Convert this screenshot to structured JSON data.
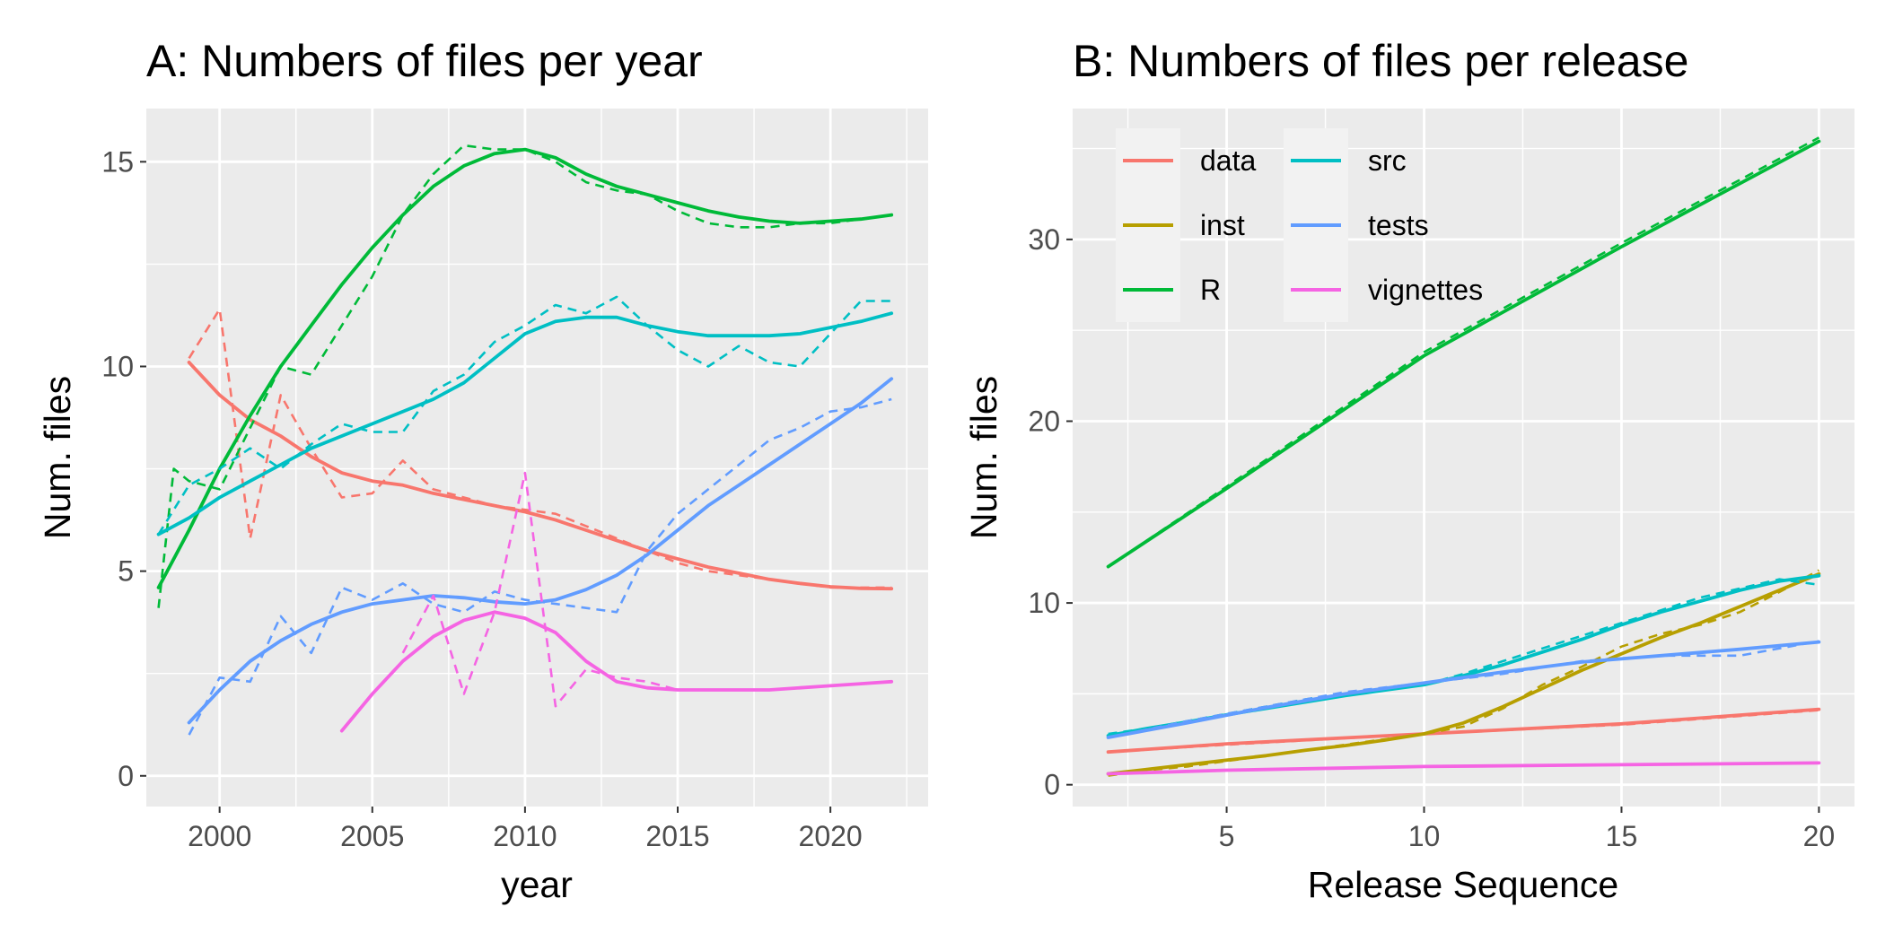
{
  "chart_data": [
    {
      "type": "line",
      "title": "A: Numbers of files per year",
      "xlabel": "year",
      "ylabel": "Num. files",
      "xlim": [
        1997.6,
        2023.2
      ],
      "ylim": [
        -0.75,
        16.3
      ],
      "xticks": [
        2000,
        2005,
        2010,
        2015,
        2020
      ],
      "yticks": [
        0,
        5,
        10,
        15
      ],
      "grid": true,
      "series": [
        {
          "name": "data",
          "color": "#F8766D",
          "raw": {
            "x": [
              1999,
              2000,
              2001,
              2002,
              2003,
              2004,
              2005,
              2006,
              2007,
              2008,
              2009,
              2010,
              2011,
              2012,
              2013,
              2014,
              2015,
              2016,
              2017,
              2018,
              2019,
              2020,
              2021,
              2022
            ],
            "y": [
              10.2,
              11.4,
              5.8,
              9.3,
              8.0,
              6.8,
              6.9,
              7.7,
              7.0,
              6.8,
              6.6,
              6.5,
              6.4,
              6.1,
              5.8,
              5.5,
              5.2,
              5.0,
              4.9,
              4.8,
              4.7,
              4.6,
              4.6,
              4.6
            ]
          },
          "smooth": {
            "x": [
              1999,
              2000,
              2001,
              2002,
              2003,
              2004,
              2005,
              2006,
              2007,
              2008,
              2009,
              2010,
              2011,
              2012,
              2013,
              2014,
              2015,
              2016,
              2017,
              2018,
              2019,
              2020,
              2021,
              2022
            ],
            "y": [
              10.1,
              9.3,
              8.7,
              8.3,
              7.8,
              7.4,
              7.2,
              7.1,
              6.9,
              6.75,
              6.6,
              6.45,
              6.25,
              6.0,
              5.75,
              5.5,
              5.3,
              5.1,
              4.95,
              4.8,
              4.7,
              4.62,
              4.58,
              4.57
            ]
          }
        },
        {
          "name": "R",
          "color": "#00BA38",
          "raw": {
            "x": [
              1998,
              1998.5,
              1999,
              2000,
              2001,
              2002,
              2003,
              2004,
              2005,
              2006,
              2007,
              2008,
              2009,
              2010,
              2011,
              2012,
              2013,
              2014,
              2015,
              2016,
              2017,
              2018,
              2019,
              2020,
              2021,
              2022
            ],
            "y": [
              4.1,
              7.5,
              7.2,
              7.0,
              8.5,
              10.0,
              9.8,
              11.0,
              12.2,
              13.7,
              14.7,
              15.4,
              15.3,
              15.3,
              15.0,
              14.5,
              14.3,
              14.2,
              13.8,
              13.5,
              13.4,
              13.4,
              13.5,
              13.5,
              13.6,
              13.7
            ]
          },
          "smooth": {
            "x": [
              1998,
              1999,
              2000,
              2001,
              2002,
              2003,
              2004,
              2005,
              2006,
              2007,
              2008,
              2009,
              2010,
              2011,
              2012,
              2013,
              2014,
              2015,
              2016,
              2017,
              2018,
              2019,
              2020,
              2021,
              2022
            ],
            "y": [
              4.6,
              6.0,
              7.5,
              8.8,
              10.0,
              11.0,
              12.0,
              12.9,
              13.7,
              14.4,
              14.9,
              15.2,
              15.3,
              15.1,
              14.7,
              14.4,
              14.2,
              14.0,
              13.8,
              13.65,
              13.55,
              13.5,
              13.55,
              13.6,
              13.7
            ]
          }
        },
        {
          "name": "src",
          "color": "#00BFC4",
          "raw": {
            "x": [
              1998,
              1999,
              2000,
              2001,
              2002,
              2003,
              2004,
              2005,
              2006,
              2007,
              2008,
              2009,
              2010,
              2011,
              2012,
              2013,
              2014,
              2015,
              2016,
              2017,
              2018,
              2019,
              2020,
              2021,
              2022
            ],
            "y": [
              5.9,
              7.1,
              7.5,
              8.0,
              7.5,
              8.1,
              8.6,
              8.4,
              8.4,
              9.4,
              9.8,
              10.6,
              11.0,
              11.5,
              11.3,
              11.7,
              11.0,
              10.4,
              10.0,
              10.5,
              10.1,
              10.0,
              10.8,
              11.6,
              11.6
            ]
          },
          "smooth": {
            "x": [
              1998,
              1999,
              2000,
              2001,
              2002,
              2003,
              2004,
              2005,
              2006,
              2007,
              2008,
              2009,
              2010,
              2011,
              2012,
              2013,
              2014,
              2015,
              2016,
              2017,
              2018,
              2019,
              2020,
              2021,
              2022
            ],
            "y": [
              5.9,
              6.3,
              6.8,
              7.2,
              7.6,
              8.0,
              8.3,
              8.6,
              8.9,
              9.2,
              9.6,
              10.2,
              10.8,
              11.1,
              11.2,
              11.2,
              11.0,
              10.85,
              10.75,
              10.75,
              10.75,
              10.8,
              10.95,
              11.1,
              11.3
            ]
          }
        },
        {
          "name": "tests",
          "color": "#619CFF",
          "raw": {
            "x": [
              1999,
              2000,
              2001,
              2002,
              2003,
              2004,
              2005,
              2006,
              2007,
              2008,
              2009,
              2010,
              2011,
              2012,
              2013,
              2014,
              2015,
              2016,
              2017,
              2018,
              2019,
              2020,
              2021,
              2022
            ],
            "y": [
              1.0,
              2.4,
              2.3,
              3.9,
              3.0,
              4.6,
              4.3,
              4.7,
              4.2,
              4.0,
              4.5,
              4.3,
              4.2,
              4.1,
              4.0,
              5.5,
              6.4,
              7.0,
              7.6,
              8.2,
              8.5,
              8.9,
              9.0,
              9.2
            ]
          },
          "smooth": {
            "x": [
              1999,
              2000,
              2001,
              2002,
              2003,
              2004,
              2005,
              2006,
              2007,
              2008,
              2009,
              2010,
              2011,
              2012,
              2013,
              2014,
              2015,
              2016,
              2017,
              2018,
              2019,
              2020,
              2021,
              2022
            ],
            "y": [
              1.3,
              2.1,
              2.8,
              3.3,
              3.7,
              4.0,
              4.2,
              4.3,
              4.4,
              4.35,
              4.25,
              4.2,
              4.3,
              4.55,
              4.9,
              5.4,
              6.0,
              6.6,
              7.1,
              7.6,
              8.1,
              8.6,
              9.1,
              9.7
            ]
          }
        },
        {
          "name": "vignettes",
          "color": "#F564E3",
          "raw": {
            "x": [
              2006,
              2007,
              2008,
              2009,
              2010,
              2011,
              2012,
              2013,
              2014,
              2015,
              2016,
              2017,
              2018,
              2019,
              2020,
              2021,
              2022
            ],
            "y": [
              3.0,
              4.4,
              2.0,
              4.0,
              7.4,
              1.7,
              2.6,
              2.4,
              2.3,
              2.1,
              2.1,
              2.1,
              2.1,
              2.15,
              2.2,
              2.25,
              2.3
            ]
          },
          "smooth": {
            "x": [
              2004,
              2005,
              2006,
              2007,
              2008,
              2009,
              2010,
              2011,
              2012,
              2013,
              2014,
              2015,
              2016,
              2017,
              2018,
              2019,
              2020,
              2021,
              2022
            ],
            "y": [
              1.1,
              2.0,
              2.8,
              3.4,
              3.8,
              4.0,
              3.85,
              3.5,
              2.8,
              2.3,
              2.15,
              2.1,
              2.1,
              2.1,
              2.1,
              2.15,
              2.2,
              2.25,
              2.3
            ]
          }
        }
      ]
    },
    {
      "type": "line",
      "title": "B: Numbers of files per release",
      "xlabel": "Release Sequence",
      "ylabel": "Num. files",
      "xlim": [
        1.1,
        20.9
      ],
      "ylim": [
        -1.2,
        37.2
      ],
      "xticks": [
        5,
        10,
        15,
        20
      ],
      "yticks": [
        0,
        10,
        20,
        30
      ],
      "grid": true,
      "legend_position": "top-left",
      "legend": [
        "data",
        "inst",
        "R",
        "src",
        "tests",
        "vignettes"
      ],
      "series": [
        {
          "name": "data",
          "color": "#F8766D",
          "raw": {
            "x": [
              2,
              5,
              10,
              15,
              20
            ],
            "y": [
              1.8,
              2.2,
              2.8,
              3.3,
              4.1
            ]
          },
          "smooth": {
            "x": [
              2,
              5,
              10,
              15,
              20
            ],
            "y": [
              1.8,
              2.25,
              2.8,
              3.35,
              4.15
            ]
          }
        },
        {
          "name": "inst",
          "color": "#B79F00",
          "raw": {
            "x": [
              2,
              3,
              4,
              5,
              6,
              7,
              8,
              9,
              10,
              11,
              12,
              13,
              14,
              15,
              16,
              17,
              18,
              19,
              20
            ],
            "y": [
              0.5,
              0.8,
              1.0,
              1.3,
              1.6,
              1.9,
              2.2,
              2.5,
              2.8,
              3.2,
              4.2,
              5.5,
              6.5,
              7.6,
              8.3,
              8.8,
              9.5,
              10.6,
              11.8
            ]
          },
          "smooth": {
            "x": [
              2,
              3,
              4,
              5,
              6,
              7,
              8,
              9,
              10,
              11,
              12,
              13,
              14,
              15,
              16,
              17,
              18,
              19,
              20
            ],
            "y": [
              0.6,
              0.85,
              1.1,
              1.35,
              1.6,
              1.9,
              2.15,
              2.45,
              2.8,
              3.4,
              4.3,
              5.3,
              6.3,
              7.2,
              8.1,
              8.9,
              9.8,
              10.7,
              11.6
            ]
          }
        },
        {
          "name": "R",
          "color": "#00BA38",
          "raw": {
            "x": [
              2,
              5,
              10,
              15,
              20
            ],
            "y": [
              12.0,
              16.4,
              23.8,
              29.8,
              35.6
            ]
          },
          "smooth": {
            "x": [
              2,
              5,
              10,
              15,
              20
            ],
            "y": [
              12.0,
              16.3,
              23.6,
              29.6,
              35.4
            ]
          }
        },
        {
          "name": "src",
          "color": "#00BFC4",
          "raw": {
            "x": [
              2,
              3,
              4,
              5,
              6,
              7,
              8,
              9,
              10,
              11,
              12,
              13,
              14,
              15,
              16,
              17,
              18,
              19,
              20
            ],
            "y": [
              2.8,
              3.1,
              3.5,
              3.9,
              4.3,
              4.7,
              5.0,
              5.2,
              5.5,
              6.1,
              6.8,
              7.5,
              8.2,
              8.9,
              9.6,
              10.3,
              10.8,
              11.3,
              11.0
            ]
          },
          "smooth": {
            "x": [
              2,
              3,
              4,
              5,
              6,
              7,
              8,
              9,
              10,
              11,
              12,
              13,
              14,
              15,
              16,
              17,
              18,
              19,
              20
            ],
            "y": [
              2.7,
              3.1,
              3.45,
              3.85,
              4.2,
              4.55,
              4.9,
              5.2,
              5.5,
              6.0,
              6.6,
              7.3,
              8.0,
              8.8,
              9.5,
              10.1,
              10.7,
              11.2,
              11.5
            ]
          }
        },
        {
          "name": "tests",
          "color": "#619CFF",
          "raw": {
            "x": [
              2,
              4,
              6,
              8,
              10,
              12,
              14,
              16,
              18,
              20
            ],
            "y": [
              2.6,
              3.5,
              4.3,
              5.1,
              5.6,
              6.1,
              6.8,
              7.1,
              7.1,
              7.9
            ]
          },
          "smooth": {
            "x": [
              2,
              4,
              6,
              8,
              10,
              12,
              14,
              16,
              18,
              20
            ],
            "y": [
              2.6,
              3.4,
              4.25,
              5.0,
              5.6,
              6.2,
              6.75,
              7.1,
              7.45,
              7.85
            ]
          }
        },
        {
          "name": "vignettes",
          "color": "#F564E3",
          "raw": {
            "x": [
              2,
              5,
              10,
              15,
              20
            ],
            "y": [
              0.6,
              0.8,
              1.0,
              1.1,
              1.2
            ]
          },
          "smooth": {
            "x": [
              2,
              5,
              10,
              15,
              20
            ],
            "y": [
              0.6,
              0.8,
              1.0,
              1.1,
              1.2
            ]
          }
        }
      ]
    }
  ]
}
